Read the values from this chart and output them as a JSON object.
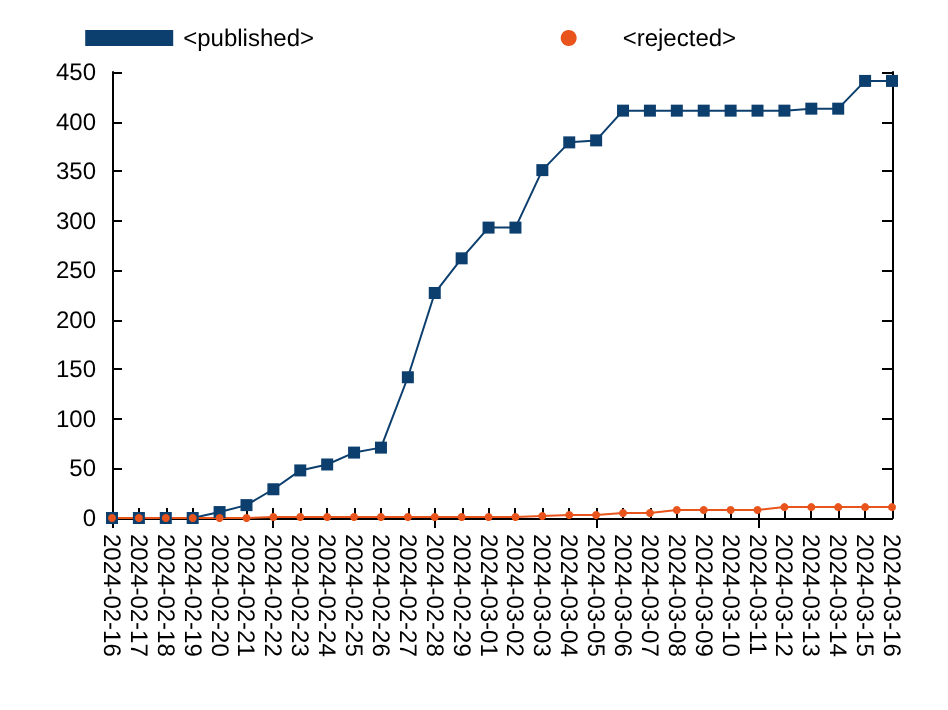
{
  "chart_data": {
    "type": "line",
    "categories": [
      "2024-02-16",
      "2024-02-17",
      "2024-02-18",
      "2024-02-19",
      "2024-02-20",
      "2024-02-21",
      "2024-02-22",
      "2024-02-23",
      "2024-02-24",
      "2024-02-25",
      "2024-02-26",
      "2024-02-27",
      "2024-02-28",
      "2024-02-29",
      "2024-03-01",
      "2024-03-02",
      "2024-03-03",
      "2024-03-04",
      "2024-03-05",
      "2024-03-06",
      "2024-03-07",
      "2024-03-08",
      "2024-03-09",
      "2024-03-10",
      "2024-03-11",
      "2024-03-12",
      "2024-03-13",
      "2024-03-14",
      "2024-03-15",
      "2024-03-16"
    ],
    "series": [
      {
        "name": "<published>",
        "color": "#0d3f6e",
        "marker": "square",
        "values": [
          0,
          0,
          0,
          0,
          6,
          13,
          29,
          48,
          54,
          66,
          71,
          142,
          227,
          262,
          293,
          293,
          351,
          379,
          381,
          411,
          411,
          411,
          411,
          411,
          411,
          411,
          413,
          413,
          441,
          441
        ]
      },
      {
        "name": "<rejected>",
        "color": "#e8541c",
        "marker": "circle",
        "values": [
          0,
          0,
          0,
          0,
          0,
          0,
          1,
          1,
          1,
          1,
          1,
          1,
          1,
          1,
          1,
          1,
          2,
          3,
          3,
          5,
          5,
          8,
          8,
          8,
          8,
          11,
          11,
          11,
          11,
          11
        ]
      }
    ],
    "ylim": [
      0,
      450
    ],
    "yticks": [
      0,
      50,
      100,
      150,
      200,
      250,
      300,
      350,
      400,
      450
    ],
    "grid": false,
    "legend": "top",
    "line_style": "solid"
  }
}
